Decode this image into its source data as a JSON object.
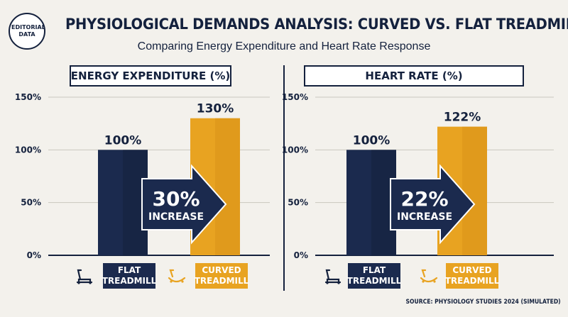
{
  "badge": "EDITORIAL DATA",
  "title": "PHYSIOLOGICAL DEMANDS ANALYSIS: CURVED VS. FLAT TREADMILLS",
  "subtitle": "Comparing Energy Expenditure and Heart Rate Response",
  "source": "SOURCE: PHYSIOLOGY STUDIES 2024 (SIMULATED)",
  "colors": {
    "navy": "#1b2a4e",
    "gold": "#e8a321",
    "text": "#14213d"
  },
  "chart_data": [
    {
      "type": "bar",
      "title": "ENERGY EXPENDITURE (%)",
      "categories": [
        "FLAT TREADMILL",
        "CURVED TREADMILL"
      ],
      "values": [
        100,
        130
      ],
      "value_labels": [
        "100%",
        "130%"
      ],
      "ylim": [
        0,
        150
      ],
      "yticks": [
        0,
        50,
        100,
        150
      ],
      "ytick_labels": [
        "0%",
        "50%",
        "100%",
        "150%"
      ],
      "grid": true,
      "annotation": {
        "value": "30%",
        "text": "INCREASE"
      },
      "legend": [
        "FLAT TREADMILL",
        "CURVED TREADMILL"
      ],
      "legend_icons": [
        "treadmill-icon",
        "curved-treadmill-icon"
      ]
    },
    {
      "type": "bar",
      "title": "HEART RATE (%)",
      "categories": [
        "FLAT TREADMILL",
        "CURVED TREADMILL"
      ],
      "values": [
        100,
        122
      ],
      "value_labels": [
        "100%",
        "122%"
      ],
      "ylim": [
        0,
        150
      ],
      "yticks": [
        0,
        50,
        100,
        150
      ],
      "ytick_labels": [
        "0%",
        "50%",
        "100%",
        "150%"
      ],
      "grid": true,
      "annotation": {
        "value": "22%",
        "text": "INCREASE"
      },
      "legend": [
        "FLAT TREADMILL",
        "CURVED TREADMILL"
      ],
      "legend_icons": [
        "treadmill-icon",
        "curved-treadmill-icon"
      ]
    }
  ]
}
